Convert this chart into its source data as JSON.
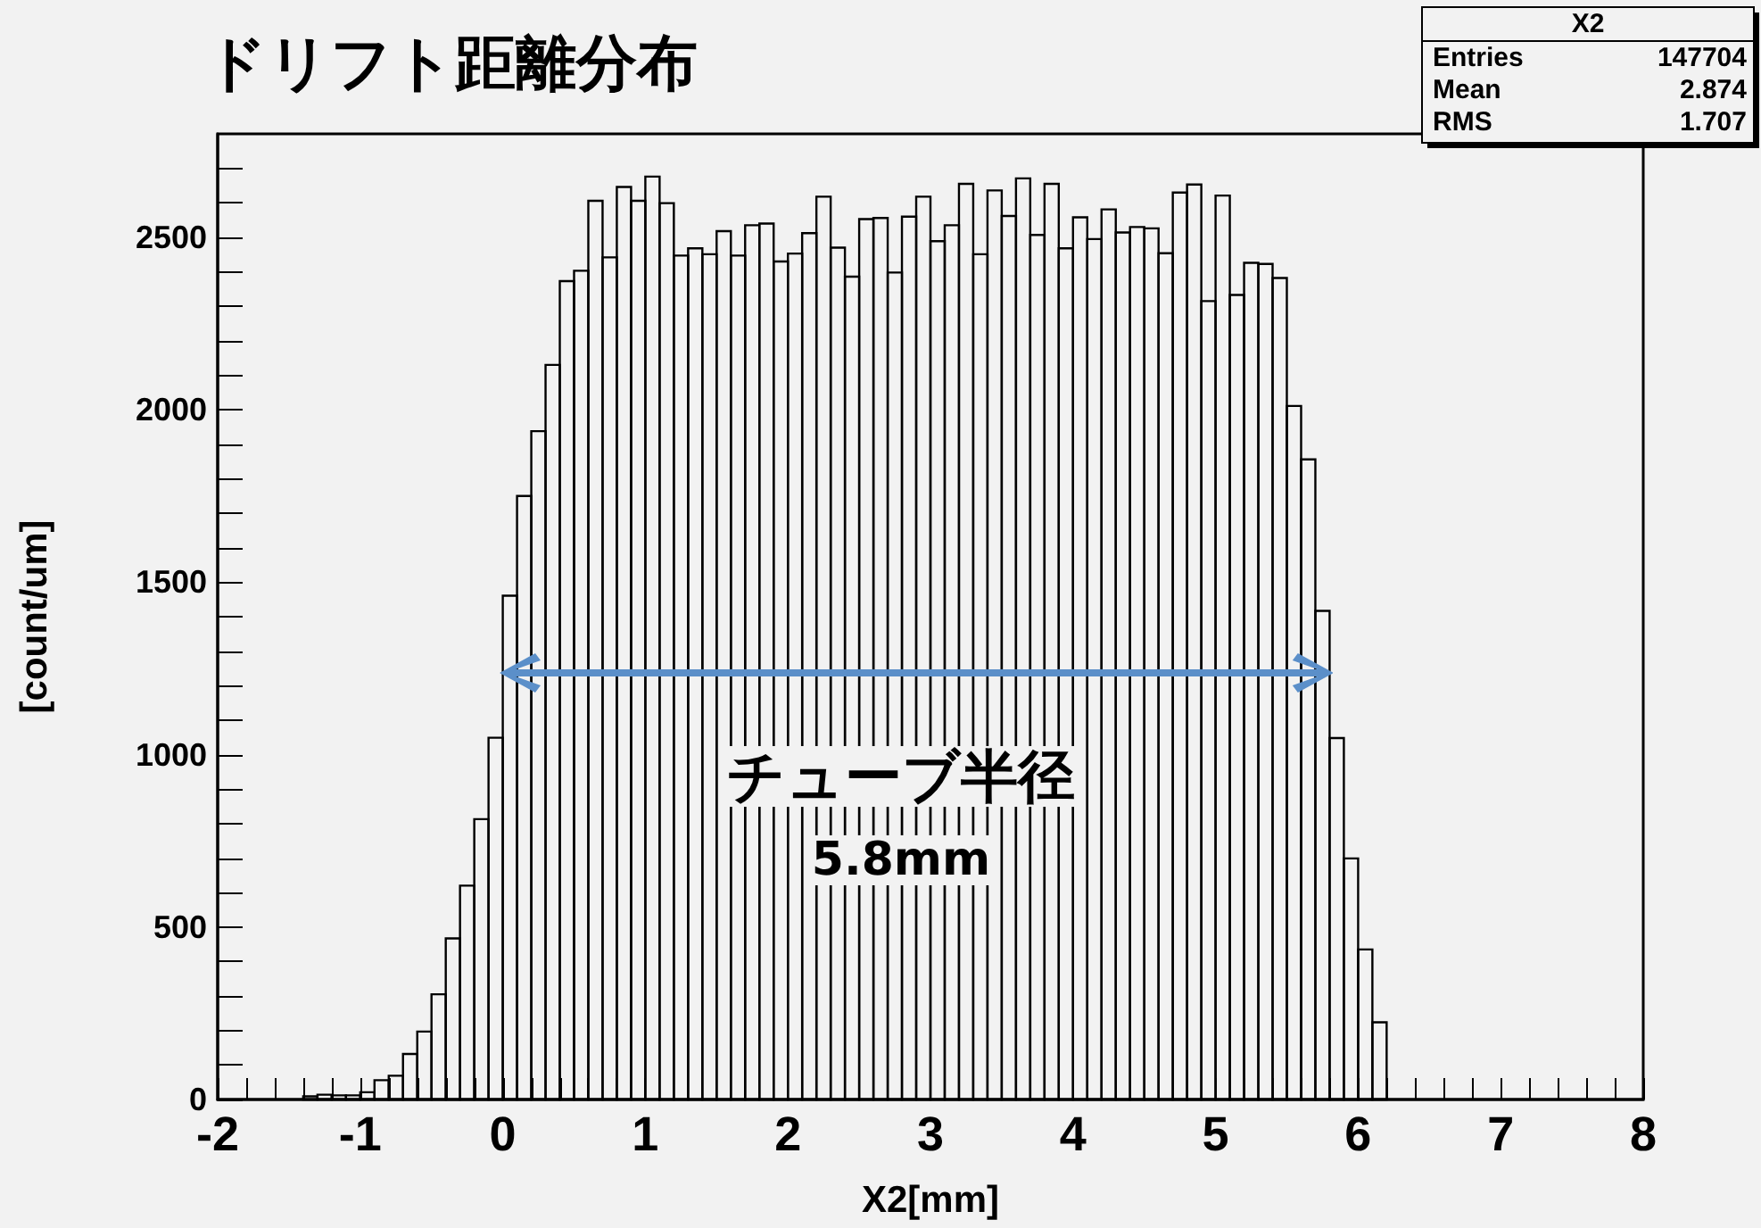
{
  "chart_data": {
    "type": "histogram",
    "title": "ドリフト距離分布",
    "xlabel": "X2[mm]",
    "ylabel": "[count/um]",
    "bins": [
      -1.4,
      -1.3,
      -1.2,
      -1.1,
      -1.0,
      -0.9,
      -0.8,
      -0.7,
      -0.6,
      -0.5,
      -0.4,
      -0.3,
      -0.2,
      -0.1,
      0.0,
      0.1,
      0.2,
      0.3,
      0.4,
      0.5,
      0.6,
      0.7,
      0.8,
      0.9,
      1.0,
      1.1,
      1.2,
      1.3,
      1.4,
      1.5,
      1.6,
      1.7,
      1.8,
      1.9,
      2.0,
      2.1,
      2.2,
      2.3,
      2.4,
      2.5,
      2.6,
      2.7,
      2.8,
      2.9,
      3.0,
      3.1,
      3.2,
      3.3,
      3.4,
      3.5,
      3.6,
      3.7,
      3.8,
      3.9,
      4.0,
      4.1,
      4.2,
      4.3,
      4.4,
      4.5,
      4.6,
      4.7,
      4.8,
      4.9,
      5.0,
      5.1,
      5.2,
      5.3,
      5.4,
      5.5,
      5.6,
      5.7,
      5.8,
      5.9,
      6.0,
      6.1,
      6.2
    ],
    "values": [
      9,
      14,
      12,
      12,
      21,
      56,
      69,
      132,
      197,
      305,
      467,
      620,
      813,
      1049,
      1461,
      1750,
      1938,
      2130,
      2373,
      2403,
      2606,
      2442,
      2646,
      2606,
      2676,
      2599,
      2447,
      2468,
      2451,
      2518,
      2447,
      2535,
      2540,
      2430,
      2453,
      2512,
      2618,
      2470,
      2386,
      2553,
      2556,
      2398,
      2560,
      2618,
      2489,
      2535,
      2655,
      2451,
      2636,
      2562,
      2671,
      2507,
      2655,
      2468,
      2558,
      2495,
      2581,
      2514,
      2530,
      2526,
      2454,
      2630,
      2653,
      2315,
      2621,
      2333,
      2426,
      2423,
      2382,
      2011,
      1856,
      1417,
      1048,
      699,
      435,
      224
    ],
    "color": "#000000",
    "xlim": [
      -2,
      8
    ],
    "xticks": [
      -2,
      {
        "value": -1.8,
        "label": null
      },
      {
        "value": -1.6,
        "label": null
      },
      {
        "value": -1.4,
        "label": null
      },
      {
        "value": -1.2,
        "label": null
      },
      -1,
      {
        "value": -0.8,
        "label": null
      },
      {
        "value": -0.6,
        "label": null
      },
      {
        "value": -0.4,
        "label": null
      },
      {
        "value": -0.2,
        "label": null
      },
      0,
      {
        "value": 0.2,
        "label": null
      },
      {
        "value": 0.4,
        "label": null
      },
      {
        "value": 0.6,
        "label": null
      },
      {
        "value": 0.8,
        "label": null
      },
      1,
      {
        "value": 1.2,
        "label": null
      },
      {
        "value": 1.4,
        "label": null
      },
      {
        "value": 1.6,
        "label": null
      },
      {
        "value": 1.8,
        "label": null
      },
      2,
      {
        "value": 2.2,
        "label": null
      },
      {
        "value": 2.4,
        "label": null
      },
      {
        "value": 2.6,
        "label": null
      },
      {
        "value": 2.8,
        "label": null
      },
      3,
      {
        "value": 3.2,
        "label": null
      },
      {
        "value": 3.4,
        "label": null
      },
      {
        "value": 3.6,
        "label": null
      },
      {
        "value": 3.8,
        "label": null
      },
      4,
      {
        "value": 4.2,
        "label": null
      },
      {
        "value": 4.4,
        "label": null
      },
      {
        "value": 4.6,
        "label": null
      },
      {
        "value": 4.8,
        "label": null
      },
      5,
      {
        "value": 5.2,
        "label": null
      },
      {
        "value": 5.4,
        "label": null
      },
      {
        "value": 5.6,
        "label": null
      },
      {
        "value": 5.8,
        "label": null
      },
      6,
      {
        "value": 6.2,
        "label": null
      },
      {
        "value": 6.4,
        "label": null
      },
      {
        "value": 6.6,
        "label": null
      },
      {
        "value": 6.8,
        "label": null
      },
      7,
      {
        "value": 7.2,
        "label": null
      },
      {
        "value": 7.4,
        "label": null
      },
      {
        "value": 7.6,
        "label": null
      },
      {
        "value": 7.8,
        "label": null
      },
      8
    ],
    "ylim": [
      0,
      2800
    ],
    "yticks": [
      0,
      {
        "value": 100,
        "label": null
      },
      {
        "value": 200,
        "label": null
      },
      {
        "value": 300,
        "label": null
      },
      {
        "value": 400,
        "label": null
      },
      500,
      {
        "value": 600,
        "label": null
      },
      {
        "value": 700,
        "label": null
      },
      {
        "value": 800,
        "label": null
      },
      {
        "value": 900,
        "label": null
      },
      1000,
      {
        "value": 1100,
        "label": null
      },
      {
        "value": 1200,
        "label": null
      },
      {
        "value": 1300,
        "label": null
      },
      {
        "value": 1400,
        "label": null
      },
      1500,
      {
        "value": 1600,
        "label": null
      },
      {
        "value": 1700,
        "label": null
      },
      {
        "value": 1800,
        "label": null
      },
      {
        "value": 1900,
        "label": null
      },
      2000,
      {
        "value": 2100,
        "label": null
      },
      {
        "value": 2200,
        "label": null
      },
      {
        "value": 2300,
        "label": null
      },
      {
        "value": 2400,
        "label": null
      },
      2500,
      {
        "value": 2600,
        "label": null
      },
      {
        "value": 2700,
        "label": null
      }
    ],
    "annotations": [
      "X2",
      "Entries",
      "147704",
      "Mean",
      "2.874",
      "RMS",
      "1.707",
      "チューブ半径",
      "5.8mm"
    ]
  }
}
